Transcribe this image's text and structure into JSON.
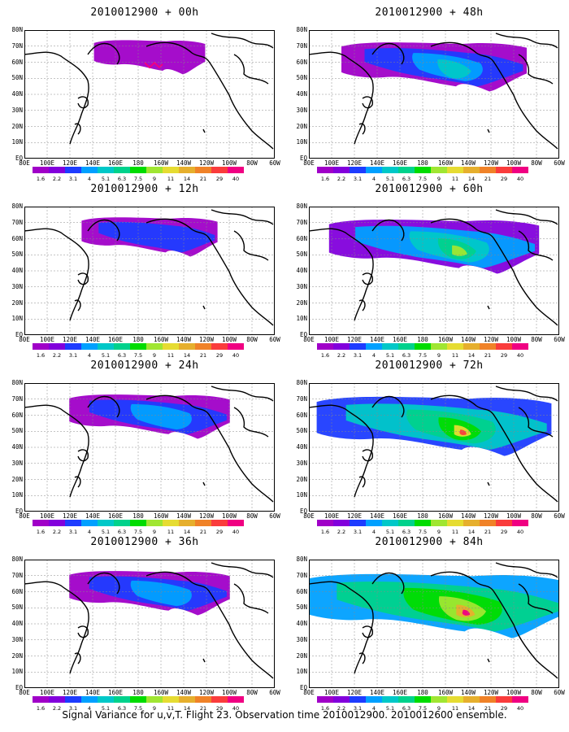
{
  "panels": [
    {
      "title": "2010012900 + 00h",
      "level": 0
    },
    {
      "title": "2010012900 + 48h",
      "level": 3
    },
    {
      "title": "2010012900 + 12h",
      "level": 1
    },
    {
      "title": "2010012900 + 60h",
      "level": 4
    },
    {
      "title": "2010012900 + 24h",
      "level": 2
    },
    {
      "title": "2010012900 + 72h",
      "level": 5
    },
    {
      "title": "2010012900 + 36h",
      "level": 2
    },
    {
      "title": "2010012900 + 84h",
      "level": 6
    }
  ],
  "lat_labels": [
    "80N",
    "70N",
    "60N",
    "50N",
    "40N",
    "30N",
    "20N",
    "10N",
    "EQ"
  ],
  "lon_labels": [
    "80E",
    "100E",
    "120E",
    "140E",
    "160E",
    "180",
    "160W",
    "140W",
    "120W",
    "100W",
    "80W",
    "60W"
  ],
  "colorbar": {
    "labels": [
      "1.6",
      "2.2",
      "3.1",
      "4",
      "5.1",
      "6.3",
      "7.5",
      "9",
      "11",
      "14",
      "21",
      "29",
      "40"
    ],
    "colors": [
      "#a000c8",
      "#8200dc",
      "#1e3cff",
      "#00a0ff",
      "#00c8c8",
      "#00d28c",
      "#00dc00",
      "#a0e632",
      "#e6dc32",
      "#e6af2d",
      "#f08228",
      "#fa3c3c",
      "#f00082"
    ]
  },
  "footer": "Signal Variance for u,v,T. Flight 23. Observation time 2010012900. 2010012600 ensemble."
}
